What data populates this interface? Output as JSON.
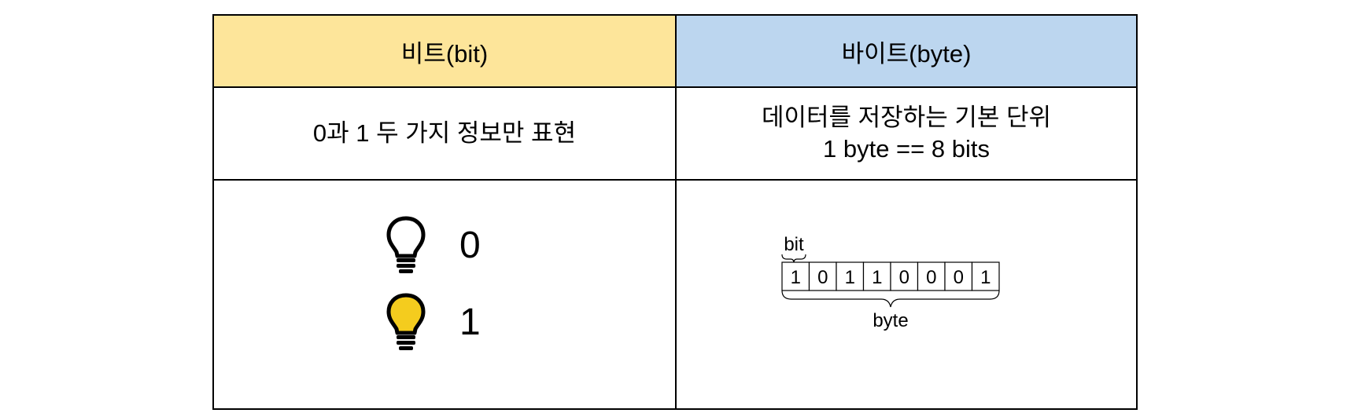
{
  "table": {
    "header": {
      "bit_title": "비트(bit)",
      "byte_title": "바이트(byte)"
    },
    "description": {
      "bit_desc": "0과 1 두 가지 정보만 표현",
      "byte_desc_line1": "데이터를 저장하는 기본 단위",
      "byte_desc_line2": "1 byte == 8 bits"
    },
    "bit_visual": {
      "states": [
        {
          "icon": "lightbulb-off-icon",
          "value": "0"
        },
        {
          "icon": "lightbulb-on-icon",
          "value": "1"
        }
      ]
    },
    "byte_visual": {
      "bit_label": "bit",
      "byte_label": "byte",
      "bits": [
        "1",
        "0",
        "1",
        "1",
        "0",
        "0",
        "0",
        "1"
      ]
    }
  },
  "colors": {
    "bit_header_bg": "#fde59a",
    "byte_header_bg": "#bcd6ef",
    "bulb_on_fill": "#f4cc1e",
    "line": "#000000"
  }
}
